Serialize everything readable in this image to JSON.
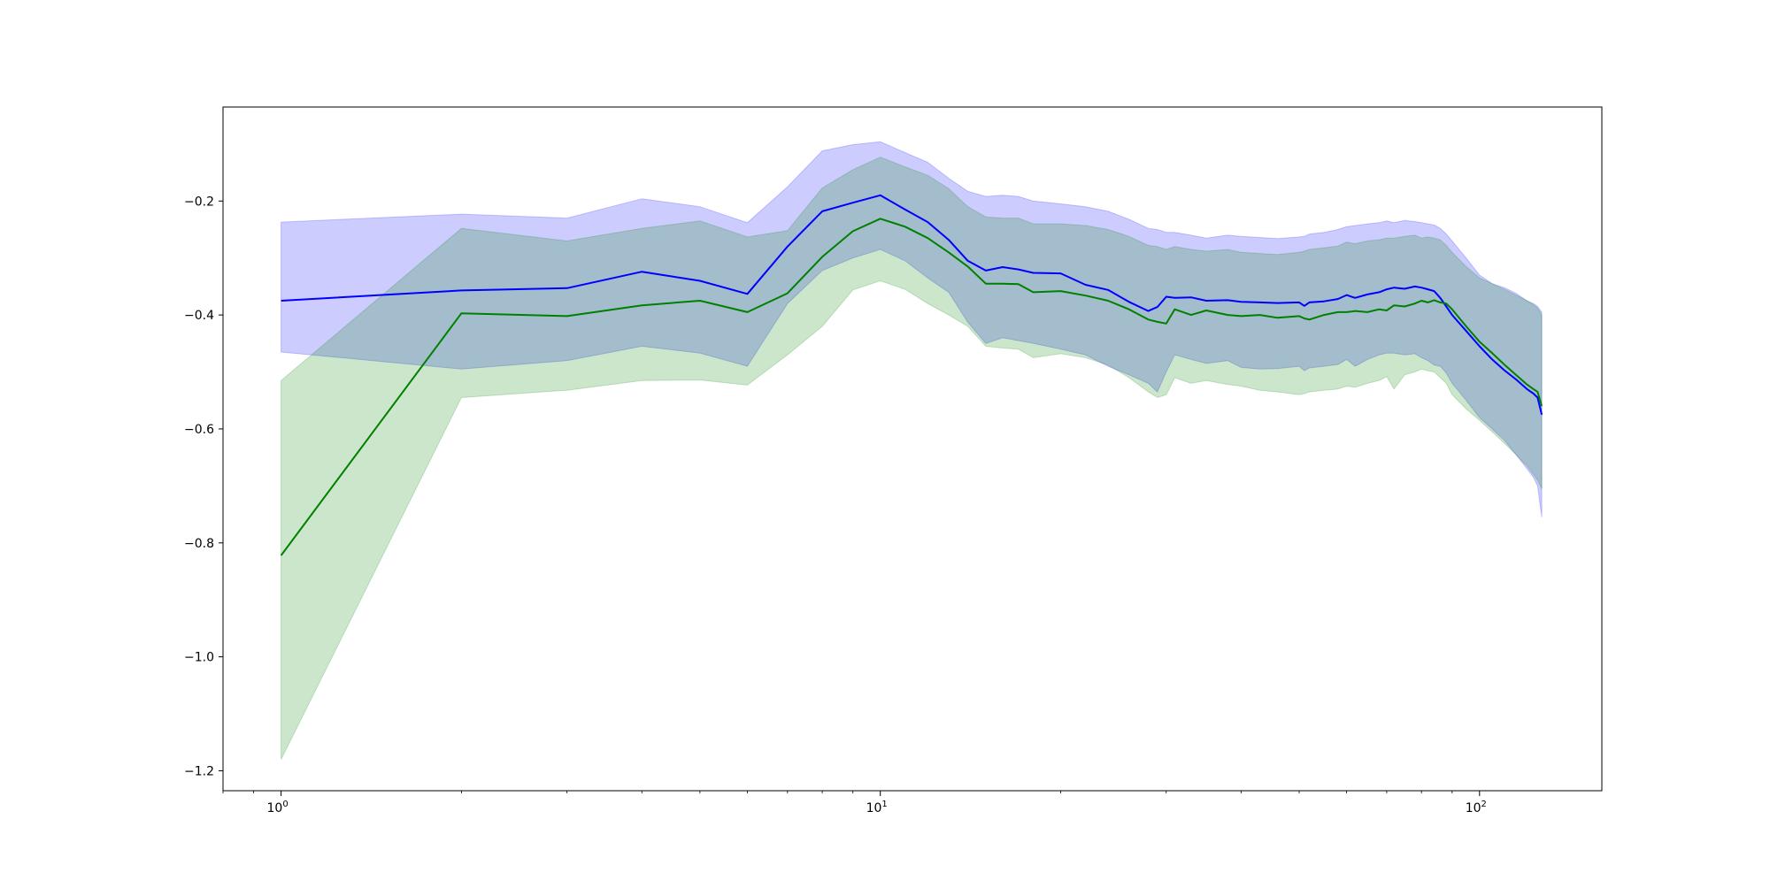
{
  "chart_data": {
    "type": "line",
    "title": "",
    "xlabel": "",
    "ylabel": "",
    "xscale": "log",
    "xlim": [
      0.8,
      160
    ],
    "ylim": [
      -1.235,
      -0.035
    ],
    "grid": false,
    "x_ticks": [
      {
        "value": 1,
        "base": "10",
        "exp": "0"
      },
      {
        "value": 10,
        "base": "10",
        "exp": "1"
      },
      {
        "value": 100,
        "base": "10",
        "exp": "2"
      }
    ],
    "y_ticks": [
      {
        "value": -0.2,
        "label": "−0.2"
      },
      {
        "value": -0.4,
        "label": "−0.4"
      },
      {
        "value": -0.6,
        "label": "−0.6"
      },
      {
        "value": -0.8,
        "label": "−0.8"
      },
      {
        "value": -1.0,
        "label": "−1.0"
      },
      {
        "value": -1.2,
        "label": "−1.2"
      }
    ],
    "series": [
      {
        "color": "#0000ff",
        "band_color": "#0000ff",
        "band_opacity": 0.2,
        "x": [
          1,
          2,
          3,
          4,
          5,
          6,
          7,
          8,
          9,
          10,
          11,
          12,
          13,
          14,
          15,
          16,
          17,
          18,
          20,
          22,
          24,
          26,
          28,
          29,
          30,
          31,
          33,
          35,
          38,
          40,
          43,
          46,
          50,
          51,
          52,
          55,
          58,
          60,
          62,
          65,
          68,
          70,
          72,
          75,
          78,
          80,
          82,
          84,
          86,
          88,
          90,
          95,
          100,
          105,
          110,
          115,
          120,
          123,
          125,
          127
        ],
        "y": [
          -0.375,
          -0.357,
          -0.353,
          -0.324,
          -0.34,
          -0.363,
          -0.28,
          -0.218,
          -0.203,
          -0.19,
          -0.215,
          -0.237,
          -0.268,
          -0.305,
          -0.322,
          -0.316,
          -0.32,
          -0.326,
          -0.327,
          -0.347,
          -0.356,
          -0.377,
          -0.393,
          -0.386,
          -0.368,
          -0.37,
          -0.369,
          -0.375,
          -0.374,
          -0.377,
          -0.378,
          -0.379,
          -0.378,
          -0.384,
          -0.378,
          -0.376,
          -0.372,
          -0.365,
          -0.37,
          -0.364,
          -0.36,
          -0.355,
          -0.352,
          -0.354,
          -0.35,
          -0.352,
          -0.355,
          -0.358,
          -0.37,
          -0.385,
          -0.4,
          -0.428,
          -0.455,
          -0.478,
          -0.497,
          -0.513,
          -0.53,
          -0.538,
          -0.545,
          -0.575
        ],
        "upper": [
          -0.237,
          -0.223,
          -0.23,
          -0.196,
          -0.21,
          -0.238,
          -0.175,
          -0.112,
          -0.101,
          -0.096,
          -0.115,
          -0.132,
          -0.16,
          -0.183,
          -0.192,
          -0.19,
          -0.192,
          -0.2,
          -0.205,
          -0.21,
          -0.218,
          -0.232,
          -0.248,
          -0.25,
          -0.255,
          -0.255,
          -0.26,
          -0.265,
          -0.26,
          -0.262,
          -0.264,
          -0.266,
          -0.263,
          -0.262,
          -0.258,
          -0.255,
          -0.25,
          -0.245,
          -0.243,
          -0.24,
          -0.238,
          -0.235,
          -0.238,
          -0.234,
          -0.236,
          -0.238,
          -0.24,
          -0.242,
          -0.248,
          -0.258,
          -0.27,
          -0.3,
          -0.33,
          -0.345,
          -0.352,
          -0.362,
          -0.375,
          -0.38,
          -0.385,
          -0.395
        ],
        "lower": [
          -0.465,
          -0.495,
          -0.48,
          -0.455,
          -0.467,
          -0.49,
          -0.38,
          -0.322,
          -0.3,
          -0.285,
          -0.305,
          -0.335,
          -0.36,
          -0.413,
          -0.45,
          -0.44,
          -0.445,
          -0.45,
          -0.46,
          -0.47,
          -0.49,
          -0.505,
          -0.52,
          -0.535,
          -0.5,
          -0.47,
          -0.478,
          -0.485,
          -0.48,
          -0.492,
          -0.495,
          -0.494,
          -0.49,
          -0.498,
          -0.493,
          -0.49,
          -0.487,
          -0.478,
          -0.49,
          -0.478,
          -0.47,
          -0.467,
          -0.467,
          -0.47,
          -0.468,
          -0.475,
          -0.48,
          -0.488,
          -0.49,
          -0.502,
          -0.52,
          -0.55,
          -0.58,
          -0.6,
          -0.62,
          -0.645,
          -0.67,
          -0.685,
          -0.7,
          -0.755
        ]
      },
      {
        "color": "#008000",
        "band_color": "#008000",
        "band_opacity": 0.2,
        "x": [
          1,
          2,
          3,
          4,
          5,
          6,
          7,
          8,
          9,
          10,
          11,
          12,
          13,
          14,
          15,
          16,
          17,
          18,
          20,
          22,
          24,
          26,
          28,
          29,
          30,
          31,
          33,
          35,
          38,
          40,
          43,
          46,
          50,
          51,
          52,
          55,
          58,
          60,
          62,
          65,
          68,
          70,
          72,
          75,
          78,
          80,
          82,
          84,
          86,
          88,
          90,
          95,
          100,
          105,
          110,
          115,
          120,
          123,
          125,
          127
        ],
        "y": [
          -0.822,
          -0.397,
          -0.402,
          -0.383,
          -0.375,
          -0.395,
          -0.362,
          -0.298,
          -0.253,
          -0.231,
          -0.245,
          -0.265,
          -0.29,
          -0.315,
          -0.345,
          -0.345,
          -0.346,
          -0.36,
          -0.358,
          -0.366,
          -0.375,
          -0.39,
          -0.408,
          -0.412,
          -0.415,
          -0.39,
          -0.4,
          -0.392,
          -0.4,
          -0.402,
          -0.4,
          -0.405,
          -0.402,
          -0.406,
          -0.408,
          -0.4,
          -0.395,
          -0.395,
          -0.393,
          -0.395,
          -0.39,
          -0.392,
          -0.383,
          -0.385,
          -0.38,
          -0.375,
          -0.378,
          -0.374,
          -0.378,
          -0.38,
          -0.39,
          -0.42,
          -0.447,
          -0.467,
          -0.487,
          -0.505,
          -0.522,
          -0.53,
          -0.535,
          -0.56
        ],
        "upper": [
          -0.515,
          -0.248,
          -0.27,
          -0.248,
          -0.235,
          -0.263,
          -0.252,
          -0.177,
          -0.145,
          -0.123,
          -0.14,
          -0.155,
          -0.178,
          -0.21,
          -0.228,
          -0.23,
          -0.23,
          -0.24,
          -0.24,
          -0.243,
          -0.25,
          -0.262,
          -0.278,
          -0.28,
          -0.285,
          -0.28,
          -0.285,
          -0.288,
          -0.285,
          -0.29,
          -0.292,
          -0.294,
          -0.29,
          -0.288,
          -0.285,
          -0.282,
          -0.279,
          -0.272,
          -0.275,
          -0.27,
          -0.268,
          -0.265,
          -0.265,
          -0.262,
          -0.26,
          -0.265,
          -0.263,
          -0.265,
          -0.268,
          -0.278,
          -0.29,
          -0.315,
          -0.335,
          -0.345,
          -0.355,
          -0.365,
          -0.375,
          -0.382,
          -0.388,
          -0.4
        ],
        "lower": [
          -1.18,
          -0.545,
          -0.532,
          -0.515,
          -0.514,
          -0.523,
          -0.47,
          -0.42,
          -0.356,
          -0.34,
          -0.355,
          -0.38,
          -0.4,
          -0.42,
          -0.455,
          -0.458,
          -0.46,
          -0.475,
          -0.468,
          -0.475,
          -0.488,
          -0.51,
          -0.535,
          -0.545,
          -0.54,
          -0.51,
          -0.52,
          -0.515,
          -0.522,
          -0.525,
          -0.532,
          -0.535,
          -0.54,
          -0.538,
          -0.535,
          -0.532,
          -0.53,
          -0.525,
          -0.527,
          -0.52,
          -0.515,
          -0.508,
          -0.53,
          -0.505,
          -0.5,
          -0.495,
          -0.498,
          -0.5,
          -0.51,
          -0.52,
          -0.54,
          -0.565,
          -0.585,
          -0.605,
          -0.625,
          -0.645,
          -0.665,
          -0.68,
          -0.69,
          -0.705
        ]
      }
    ]
  }
}
